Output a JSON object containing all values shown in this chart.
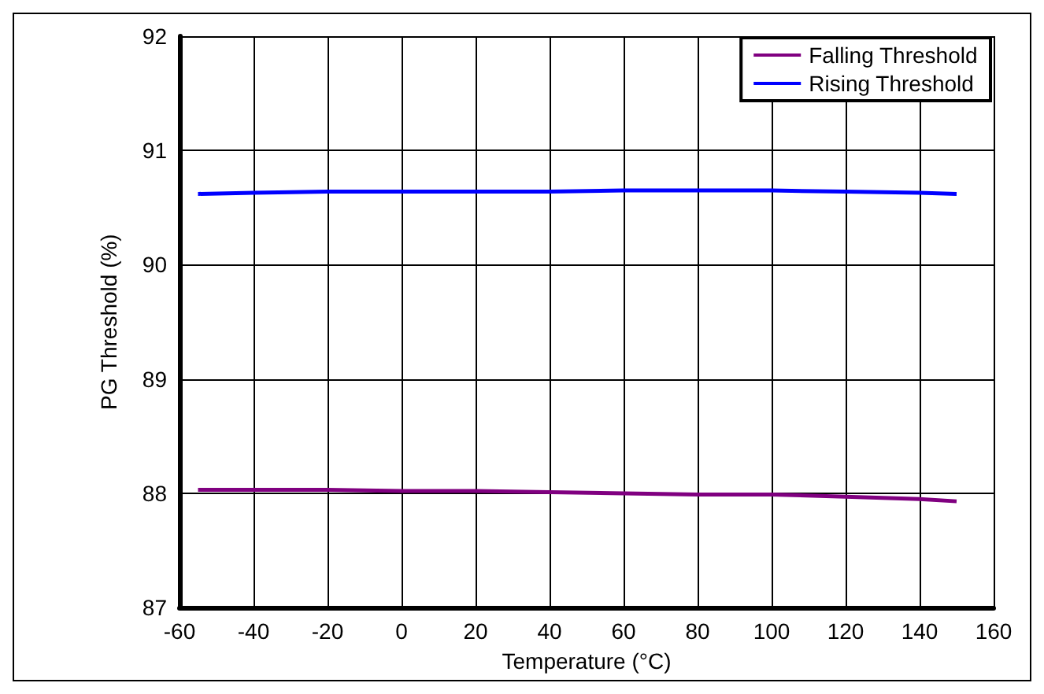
{
  "chart_data": {
    "type": "line",
    "xlabel": "Temperature (°C)",
    "ylabel": "PG Threshold (%)",
    "x": [
      -55,
      -40,
      -20,
      0,
      20,
      40,
      60,
      80,
      100,
      120,
      140,
      150
    ],
    "series": [
      {
        "name": "Falling Threshold",
        "color": "#800080",
        "values": [
          88.03,
          88.03,
          88.03,
          88.02,
          88.02,
          88.01,
          88.0,
          87.99,
          87.99,
          87.97,
          87.95,
          87.93
        ]
      },
      {
        "name": "Rising Threshold",
        "color": "#0000ff",
        "values": [
          90.62,
          90.63,
          90.64,
          90.64,
          90.64,
          90.64,
          90.65,
          90.65,
          90.65,
          90.64,
          90.63,
          90.62
        ]
      }
    ],
    "xlim": [
      -60,
      160
    ],
    "xticks": [
      -60,
      -40,
      -20,
      0,
      20,
      40,
      60,
      80,
      100,
      120,
      140,
      160
    ],
    "ylim": [
      87,
      92
    ],
    "yticks": [
      87,
      88,
      89,
      90,
      91,
      92
    ],
    "grid": true,
    "legend": "top right",
    "marker": "none",
    "line_style": "solid"
  }
}
